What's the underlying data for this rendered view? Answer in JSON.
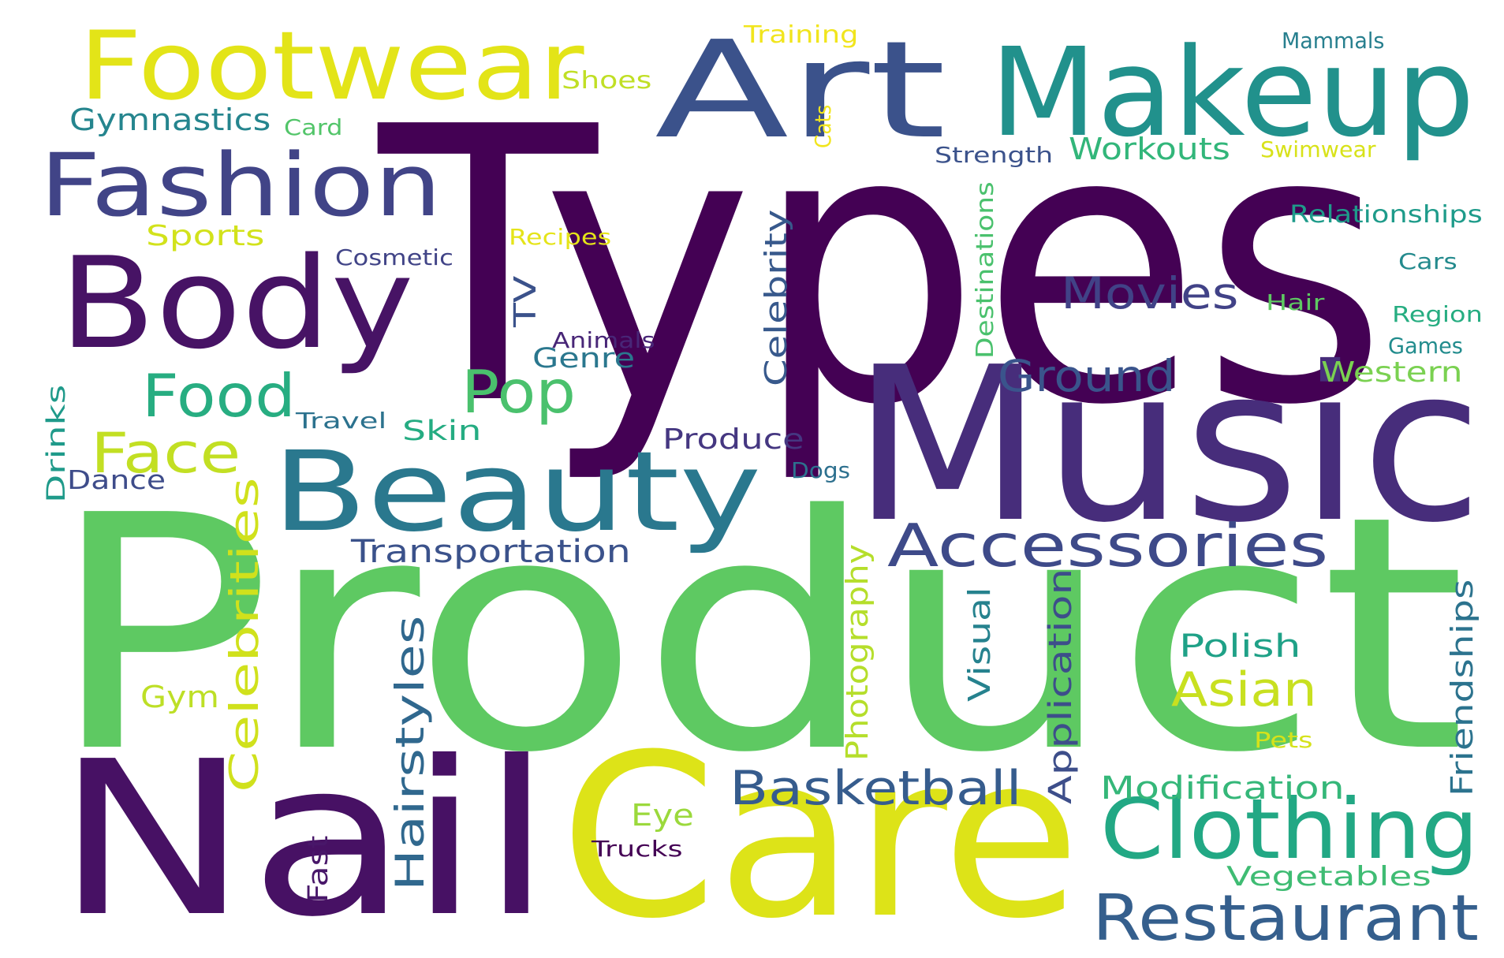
{
  "words": [
    {
      "text": "Types",
      "color": "#440154"
    },
    {
      "text": "Product",
      "color": "#5ec962"
    },
    {
      "text": "Music",
      "color": "#472d7b"
    },
    {
      "text": "Care",
      "color": "#dde318"
    },
    {
      "text": "Nail",
      "color": "#471164"
    },
    {
      "text": "Art",
      "color": "#3b528b"
    },
    {
      "text": "Makeup",
      "color": "#21918c"
    },
    {
      "text": "Footwear",
      "color": "#e3e418"
    },
    {
      "text": "Fashion",
      "color": "#414487"
    },
    {
      "text": "Body",
      "color": "#471365"
    },
    {
      "text": "Beauty",
      "color": "#2a788e"
    },
    {
      "text": "Clothing",
      "color": "#22a884"
    },
    {
      "text": "Restaurant",
      "color": "#355f8d"
    },
    {
      "text": "Accessories",
      "color": "#3e4a89"
    },
    {
      "text": "Food",
      "color": "#27ad81"
    },
    {
      "text": "Pop",
      "color": "#4ac16d"
    },
    {
      "text": "Face",
      "color": "#c2df23"
    },
    {
      "text": "Basketball",
      "color": "#365c8d"
    },
    {
      "text": "Asian",
      "color": "#c8e020"
    },
    {
      "text": "Ground",
      "color": "#3a548c"
    },
    {
      "text": "Movies",
      "color": "#414287"
    },
    {
      "text": "Hairstyles",
      "color": "#30688e"
    },
    {
      "text": "Celebrities",
      "color": "#d0e11c"
    },
    {
      "text": "Modification",
      "color": "#35b779"
    },
    {
      "text": "Polish",
      "color": "#1fa187"
    },
    {
      "text": "Transportation",
      "color": "#3b528b"
    },
    {
      "text": "Workouts",
      "color": "#32b67a"
    },
    {
      "text": "Gymnastics",
      "color": "#25858e"
    },
    {
      "text": "Sports",
      "color": "#d2e21b"
    },
    {
      "text": "Genre",
      "color": "#2a778e"
    },
    {
      "text": "Western",
      "color": "#7ad151"
    },
    {
      "text": "Produce",
      "color": "#453781"
    },
    {
      "text": "Celebrity",
      "color": "#38598c"
    },
    {
      "text": "TV",
      "color": "#3b528b"
    },
    {
      "text": "Skin",
      "color": "#25ac82"
    },
    {
      "text": "Vegetables",
      "color": "#3fbc73"
    },
    {
      "text": "Eye",
      "color": "#9bd93c"
    },
    {
      "text": "Application",
      "color": "#3d4e8a"
    },
    {
      "text": "Photography",
      "color": "#b5de2b"
    },
    {
      "text": "Visual",
      "color": "#26828e"
    },
    {
      "text": "Friendships",
      "color": "#2c738e"
    },
    {
      "text": "Relationships",
      "color": "#1e9b8a"
    },
    {
      "text": "Gym",
      "color": "#bddf26"
    },
    {
      "text": "Fast",
      "color": "#481769"
    },
    {
      "text": "Dance",
      "color": "#3e4c8a"
    },
    {
      "text": "Drinks",
      "color": "#1f9a8a"
    },
    {
      "text": "Training",
      "color": "#f1e51d"
    },
    {
      "text": "Shoes",
      "color": "#c0df25"
    },
    {
      "text": "Card",
      "color": "#52c569"
    },
    {
      "text": "Mammals",
      "color": "#277f8e"
    },
    {
      "text": "Cats",
      "color": "#f1e51d"
    },
    {
      "text": "Strength",
      "color": "#3b528b"
    },
    {
      "text": "Swimwear",
      "color": "#d8e219"
    },
    {
      "text": "Recipes",
      "color": "#e5e419"
    },
    {
      "text": "Cosmetic",
      "color": "#414487"
    },
    {
      "text": "Destinations",
      "color": "#4ac16d"
    },
    {
      "text": "Cars",
      "color": "#238a8d"
    },
    {
      "text": "Hair",
      "color": "#5ec962"
    },
    {
      "text": "Region",
      "color": "#26ad81"
    },
    {
      "text": "Games",
      "color": "#228c8d"
    },
    {
      "text": "Animals",
      "color": "#482677"
    },
    {
      "text": "Travel",
      "color": "#2c728e"
    },
    {
      "text": "Dogs",
      "color": "#2d708e"
    },
    {
      "text": "Pets",
      "color": "#d5e21a"
    },
    {
      "text": "Trucks",
      "color": "#440154"
    }
  ]
}
